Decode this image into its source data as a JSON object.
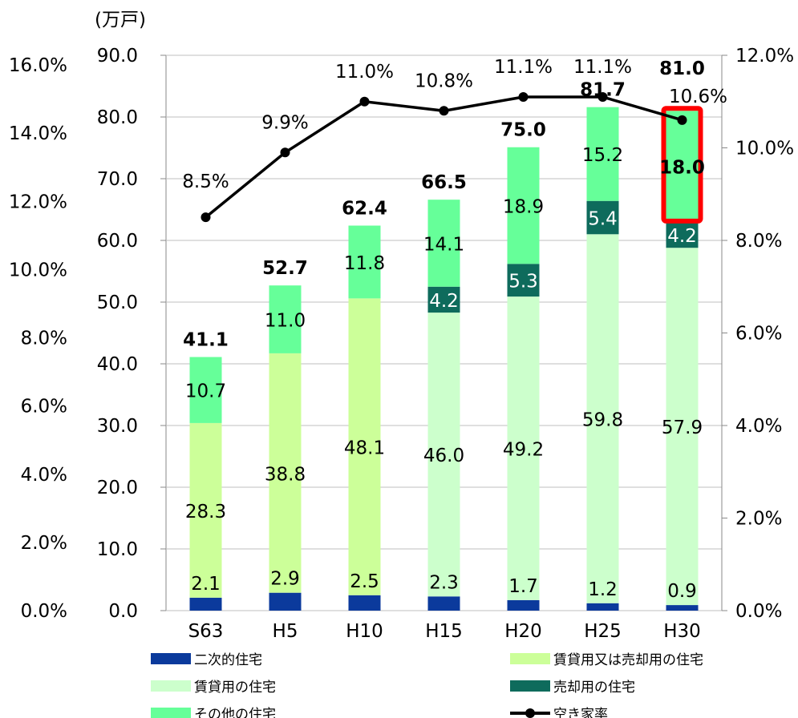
{
  "chart_data": {
    "type": "bar",
    "stacked": true,
    "unit_label": "(万戸)",
    "categories": [
      "S63",
      "H5",
      "H10",
      "H15",
      "H20",
      "H25",
      "H30"
    ],
    "left_axis_ticks": [
      "0.0%",
      "2.0%",
      "4.0%",
      "6.0%",
      "8.0%",
      "10.0%",
      "12.0%",
      "14.0%",
      "16.0%"
    ],
    "primary_axis": {
      "ylim": [
        0,
        90
      ],
      "ticks": [
        "0.0",
        "10.0",
        "20.0",
        "30.0",
        "40.0",
        "50.0",
        "60.0",
        "70.0",
        "80.0",
        "90.0"
      ]
    },
    "secondary_axis": {
      "ylim": [
        0,
        12
      ],
      "ticks": [
        "0.0%",
        "2.0%",
        "4.0%",
        "6.0%",
        "8.0%",
        "10.0%",
        "12.0%"
      ]
    },
    "series": [
      {
        "name": "二次的住宅",
        "color": "#0b3a9c",
        "values": [
          2.1,
          2.9,
          2.5,
          2.3,
          1.7,
          1.2,
          0.9
        ],
        "labels": [
          "2.1",
          "2.9",
          "2.5",
          "2.3",
          "1.7",
          "1.2",
          "0.9"
        ]
      },
      {
        "name": "賃貸用又は売却用の住宅",
        "color": "#ccff99",
        "values": [
          28.3,
          38.8,
          48.1,
          null,
          null,
          null,
          null
        ],
        "labels": [
          "28.3",
          "38.8",
          "48.1",
          "",
          "",
          "",
          ""
        ]
      },
      {
        "name": "賃貸用の住宅",
        "color": "#ccffcc",
        "values": [
          null,
          null,
          null,
          46.0,
          49.2,
          59.8,
          57.9
        ],
        "labels": [
          "",
          "",
          "",
          "46.0",
          "49.2",
          "59.8",
          "57.9"
        ]
      },
      {
        "name": "売却用の住宅",
        "color": "#0e6b5c",
        "values": [
          null,
          null,
          null,
          4.2,
          5.3,
          5.4,
          4.2
        ],
        "labels": [
          "",
          "",
          "",
          "4.2",
          "5.3",
          "5.4",
          "4.2"
        ]
      },
      {
        "name": "その他の住宅",
        "color": "#66ff99",
        "values": [
          10.7,
          11.0,
          11.8,
          14.1,
          18.9,
          15.2,
          18.0
        ],
        "labels": [
          "10.7",
          "11.0",
          "11.8",
          "14.1",
          "18.9",
          "15.2",
          "18.0"
        ]
      }
    ],
    "totals": [
      "41.1",
      "52.7",
      "62.4",
      "66.5",
      "75.0",
      "81.7",
      "81.0"
    ],
    "line_series": {
      "name": "空き家率",
      "color": "#000000",
      "axis": "secondary",
      "values": [
        8.5,
        9.9,
        11.0,
        10.8,
        11.1,
        11.1,
        10.6
      ],
      "labels": [
        "8.5%",
        "9.9%",
        "11.0%",
        "10.8%",
        "11.1%",
        "11.1%",
        "10.6%"
      ]
    },
    "highlight": {
      "category": "H30",
      "series": "その他の住宅",
      "color": "#ff0000"
    },
    "legend": {
      "placement": "bottom",
      "entries": [
        "二次的住宅",
        "賃貸用又は売却用の住宅",
        "賃貸用の住宅",
        "売却用の住宅",
        "その他の住宅",
        "空き家率"
      ]
    }
  }
}
